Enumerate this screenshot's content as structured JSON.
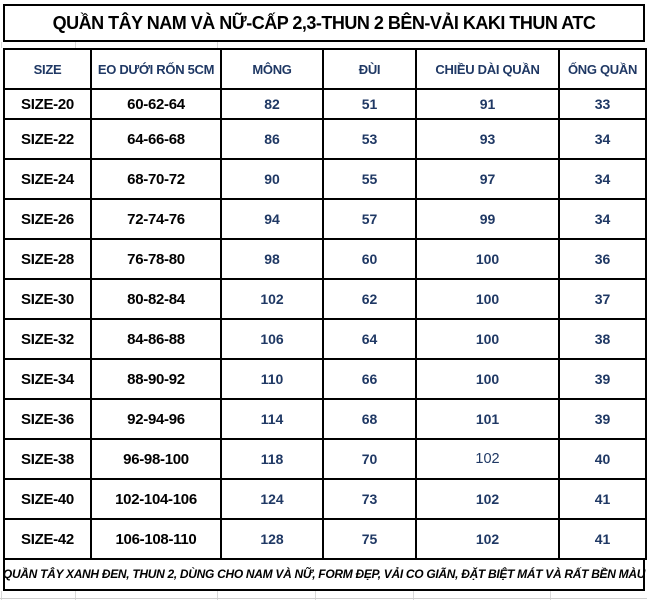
{
  "title": "QUẦN TÂY NAM VÀ NỮ-CẤP 2,3-THUN 2 BÊN-VẢI KAKI THUN ATC",
  "table": {
    "columns": [
      "SIZE",
      "EO DƯỚI RỐN 5CM",
      "MÔNG",
      "ĐÙI",
      "CHIỀU DÀI QUẦN",
      "ỐNG QUẦN"
    ],
    "rows": [
      [
        "SIZE-20",
        "60-62-64",
        "82",
        "51",
        "91",
        "33"
      ],
      [
        "SIZE-22",
        "64-66-68",
        "86",
        "53",
        "93",
        "34"
      ],
      [
        "SIZE-24",
        "68-70-72",
        "90",
        "55",
        "97",
        "34"
      ],
      [
        "SIZE-26",
        "72-74-76",
        "94",
        "57",
        "99",
        "34"
      ],
      [
        "SIZE-28",
        "76-78-80",
        "98",
        "60",
        "100",
        "36"
      ],
      [
        "SIZE-30",
        "80-82-84",
        "102",
        "62",
        "100",
        "37"
      ],
      [
        "SIZE-32",
        "84-86-88",
        "106",
        "64",
        "100",
        "38"
      ],
      [
        "SIZE-34",
        "88-90-92",
        "110",
        "66",
        "100",
        "39"
      ],
      [
        "SIZE-36",
        "92-94-96",
        "114",
        "68",
        "101",
        "39"
      ],
      [
        "SIZE-38",
        "96-98-100",
        "118",
        "70",
        "102",
        "40"
      ],
      [
        "SIZE-40",
        "102-104-106",
        "124",
        "73",
        "102",
        "41"
      ],
      [
        "SIZE-42",
        "106-108-110",
        "128",
        "75",
        "102",
        "41"
      ]
    ]
  },
  "footer_note": "QUẦN TÂY XANH ĐEN, THUN 2, DÙNG CHO NAM VÀ NỮ, FORM ĐẸP, VẢI CO GIÃN, ĐẶT BIỆT MÁT VÀ RẤT BỀN MÀU",
  "colors": {
    "accent_text": "#1F3864",
    "body_text": "#000000",
    "grid_border": "#000000",
    "sheet_gridline": "#D9D9D9"
  }
}
